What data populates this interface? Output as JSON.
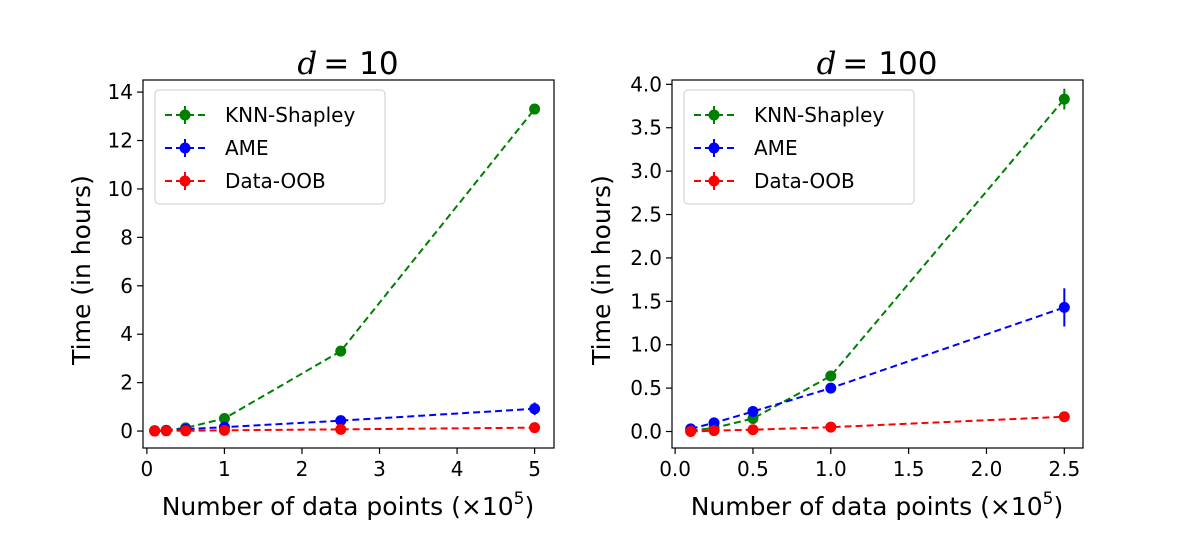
{
  "colors": {
    "knn": "#008000",
    "ame": "#0000ff",
    "oob": "#ff0000",
    "axis": "#000000",
    "legend_border": "#cccccc"
  },
  "chart_data": [
    {
      "type": "line",
      "title_math": "d",
      "title_eq": "= 10",
      "xlabel": "Number of data points (×10",
      "xlabel_exp": "5",
      "xlabel_close": ")",
      "ylabel": "Time (in hours)",
      "xlim": [
        -0.05,
        5.25
      ],
      "ylim": [
        -0.7,
        14.5
      ],
      "xticks": [
        0,
        1,
        2,
        3,
        4,
        5
      ],
      "xtick_labels": [
        "0",
        "1",
        "2",
        "3",
        "4",
        "5"
      ],
      "yticks": [
        0,
        2,
        4,
        6,
        8,
        10,
        12,
        14
      ],
      "ytick_labels": [
        "0",
        "2",
        "4",
        "6",
        "8",
        "10",
        "12",
        "14"
      ],
      "legend_position": "upper-left",
      "grid": false,
      "series": [
        {
          "name": "KNN-Shapley",
          "color": "knn",
          "x": [
            0.1,
            0.25,
            0.5,
            1.0,
            2.5,
            5.0
          ],
          "y": [
            0.01,
            0.03,
            0.13,
            0.52,
            3.3,
            13.3
          ],
          "err": [
            0.01,
            0.01,
            0.02,
            0.03,
            0.05,
            0.06
          ]
        },
        {
          "name": "AME",
          "color": "ame",
          "x": [
            0.1,
            0.25,
            0.5,
            1.0,
            2.5,
            5.0
          ],
          "y": [
            0.01,
            0.03,
            0.08,
            0.16,
            0.43,
            0.92
          ],
          "err": [
            0.02,
            0.03,
            0.04,
            0.05,
            0.12,
            0.26
          ]
        },
        {
          "name": "Data-OOB",
          "color": "oob",
          "x": [
            0.1,
            0.25,
            0.5,
            1.0,
            2.5,
            5.0
          ],
          "y": [
            0.0,
            0.01,
            0.01,
            0.03,
            0.07,
            0.14
          ],
          "err": [
            0.01,
            0.01,
            0.01,
            0.01,
            0.01,
            0.02
          ]
        }
      ]
    },
    {
      "type": "line",
      "title_math": "d",
      "title_eq": "= 100",
      "xlabel": "Number of data points (×10",
      "xlabel_exp": "5",
      "xlabel_close": ")",
      "ylabel": "Time (in hours)",
      "xlim": [
        -0.02,
        2.62
      ],
      "ylim": [
        -0.19,
        4.05
      ],
      "xticks": [
        0.0,
        0.5,
        1.0,
        1.5,
        2.0,
        2.5
      ],
      "xtick_labels": [
        "0.0",
        "0.5",
        "1.0",
        "1.5",
        "2.0",
        "2.5"
      ],
      "yticks": [
        0.0,
        0.5,
        1.0,
        1.5,
        2.0,
        2.5,
        3.0,
        3.5,
        4.0
      ],
      "ytick_labels": [
        "0.0",
        "0.5",
        "1.0",
        "1.5",
        "2.0",
        "2.5",
        "3.0",
        "3.5",
        "4.0"
      ],
      "legend_position": "upper-left",
      "grid": false,
      "series": [
        {
          "name": "KNN-Shapley",
          "color": "knn",
          "x": [
            0.1,
            0.25,
            0.5,
            1.0,
            2.5
          ],
          "y": [
            0.01,
            0.04,
            0.15,
            0.64,
            3.83
          ],
          "err": [
            0.01,
            0.01,
            0.02,
            0.04,
            0.12
          ]
        },
        {
          "name": "AME",
          "color": "ame",
          "x": [
            0.1,
            0.25,
            0.5,
            1.0,
            2.5
          ],
          "y": [
            0.03,
            0.1,
            0.23,
            0.5,
            1.43
          ],
          "err": [
            0.02,
            0.03,
            0.04,
            0.04,
            0.22
          ]
        },
        {
          "name": "Data-OOB",
          "color": "oob",
          "x": [
            0.1,
            0.25,
            0.5,
            1.0,
            2.5
          ],
          "y": [
            0.0,
            0.01,
            0.02,
            0.05,
            0.17
          ],
          "err": [
            0.005,
            0.005,
            0.005,
            0.01,
            0.01
          ]
        }
      ]
    }
  ]
}
